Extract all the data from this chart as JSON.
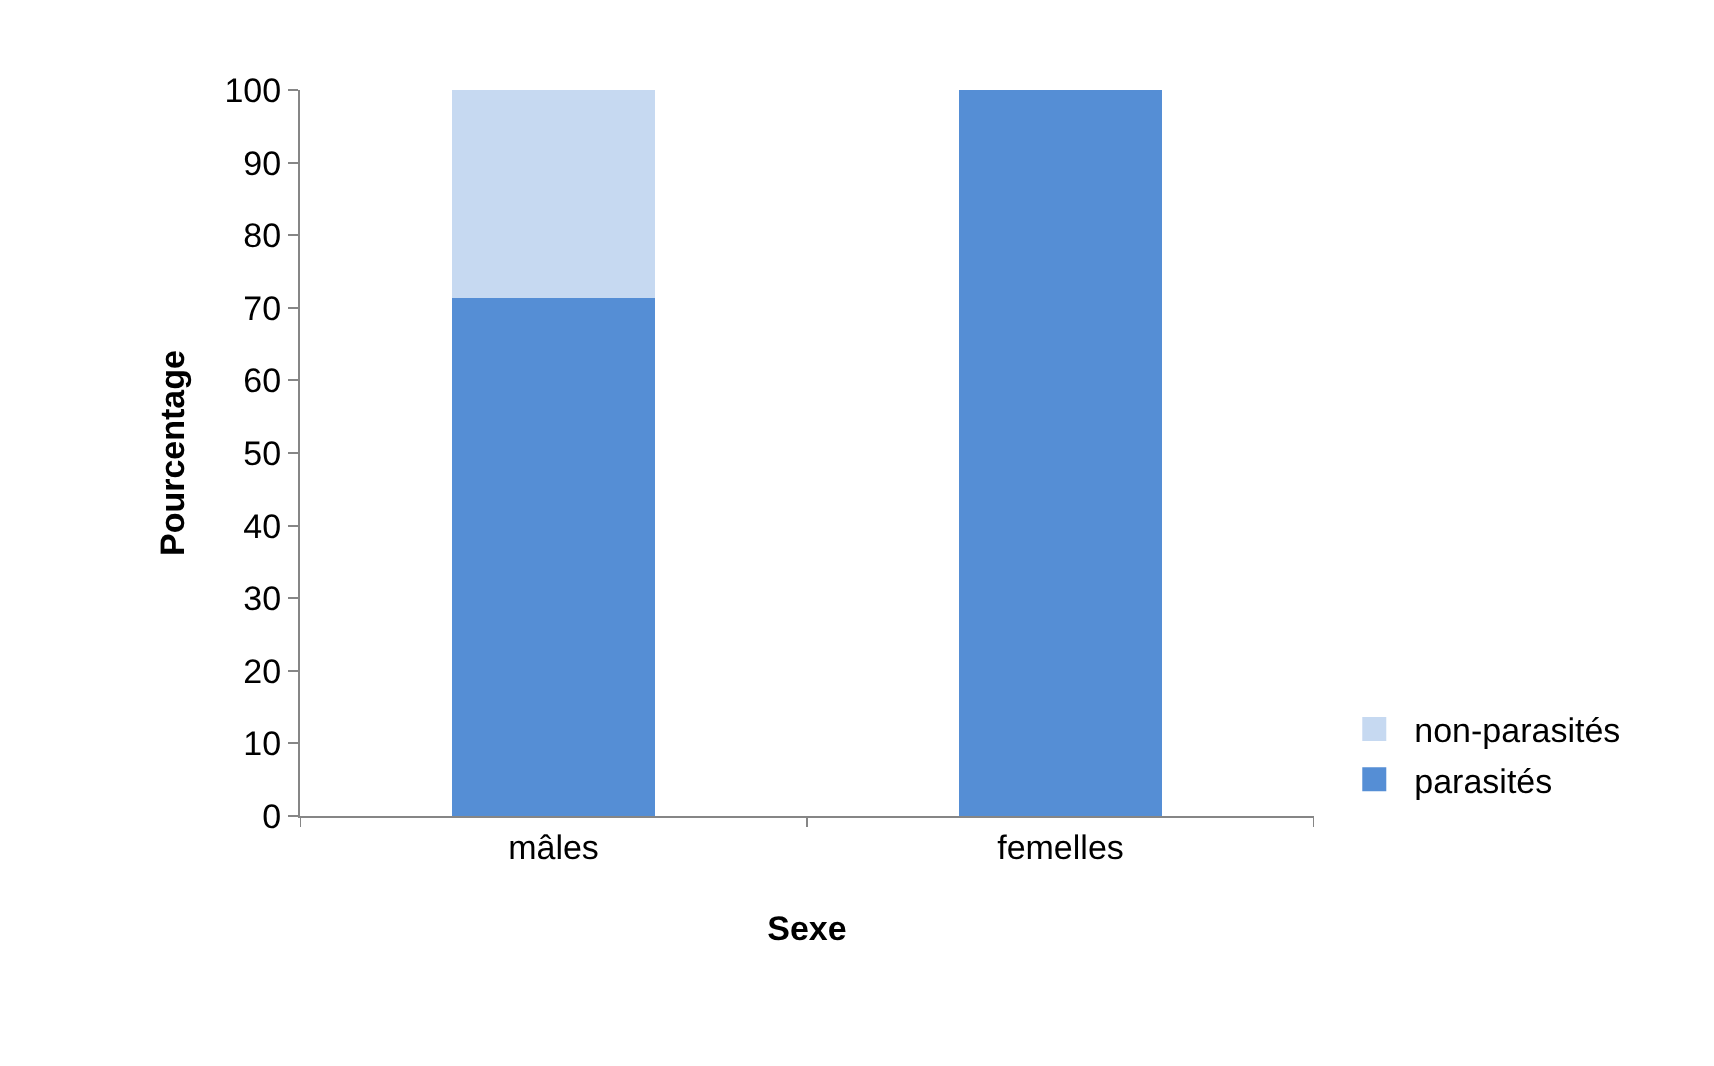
{
  "chart_data": {
    "type": "bar",
    "xlabel": "Sexe",
    "ylabel": "Pourcentage",
    "categories": [
      "mâles",
      "femelles"
    ],
    "series": [
      {
        "name": "parasités",
        "color": "#558ed5",
        "values": [
          71.4,
          100
        ]
      },
      {
        "name": "non-parasités",
        "color": "#c6d9f1",
        "values": [
          28.6,
          0
        ]
      }
    ],
    "stacked": true,
    "ylim": [
      0,
      100
    ],
    "yticks": [
      0,
      10,
      20,
      30,
      40,
      50,
      60,
      70,
      80,
      90,
      100
    ],
    "legend": "bottom right"
  }
}
